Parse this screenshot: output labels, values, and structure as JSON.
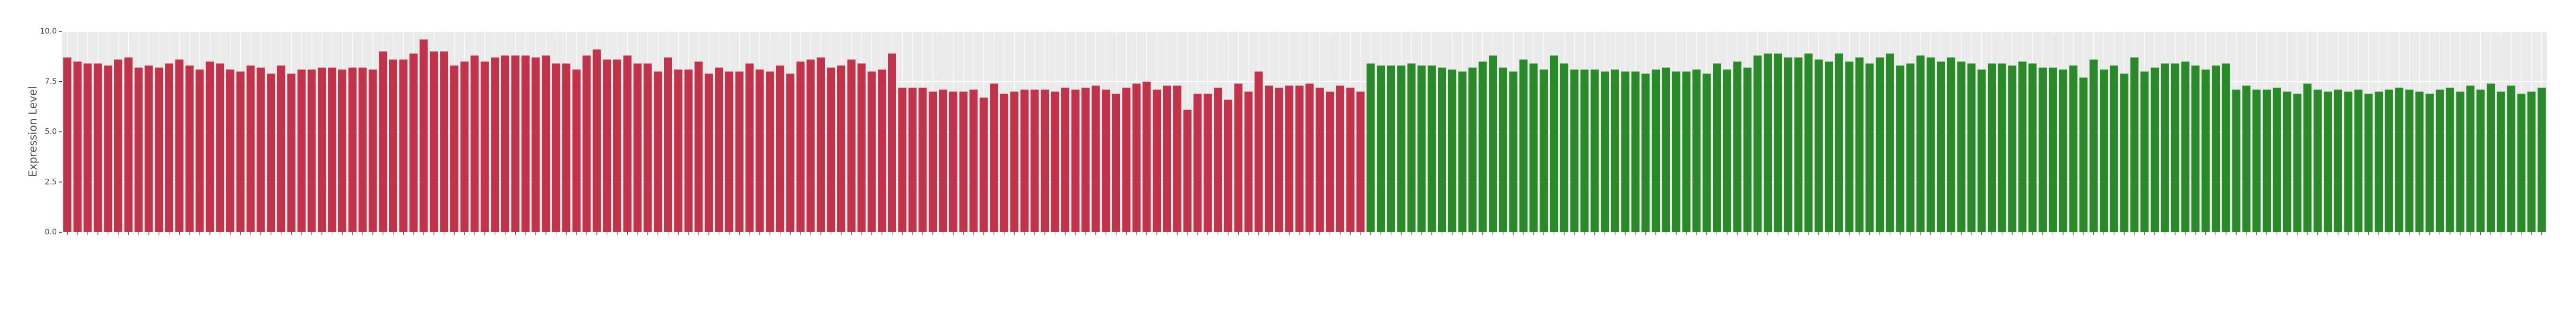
{
  "chart_data": {
    "type": "bar",
    "y_label": "Expression Level",
    "ylim": [
      0,
      10
    ],
    "yticks": [
      {
        "value": 0,
        "label": "0.0"
      },
      {
        "value": 2.5,
        "label": "2.5"
      },
      {
        "value": 5,
        "label": "5.0"
      },
      {
        "value": 7.5,
        "label": "7.5"
      },
      {
        "value": 10,
        "label": "10.0"
      }
    ],
    "grid": true,
    "groups": [
      {
        "color": "#c1334a",
        "values": [
          8.7,
          8.5,
          8.4,
          8.4,
          8.3,
          8.6,
          8.7,
          8.2,
          8.3,
          8.2,
          8.4,
          8.6,
          8.3,
          8.1,
          8.5,
          8.4,
          8.1,
          8.0,
          8.3,
          8.2,
          7.9,
          8.3,
          7.9,
          8.1,
          8.1,
          8.2,
          8.2,
          8.1,
          8.2,
          8.2,
          8.1,
          9.0,
          8.6,
          8.6,
          8.9,
          9.6,
          9.0,
          9.0,
          8.3,
          8.5,
          8.8,
          8.5,
          8.7,
          8.8,
          8.8,
          8.8,
          8.7,
          8.8,
          8.4,
          8.4,
          8.1,
          8.8,
          9.1,
          8.6,
          8.6,
          8.8,
          8.4,
          8.4,
          8.0,
          8.7,
          8.1,
          8.1,
          8.5,
          7.9,
          8.2,
          8.0,
          8.0,
          8.4,
          8.1,
          8.0,
          8.3,
          7.9,
          8.5,
          8.6,
          8.7,
          8.2,
          8.3,
          8.6,
          8.4,
          8.0,
          8.1,
          8.9,
          7.2,
          7.2,
          7.2,
          7.0,
          7.1,
          7.0,
          7.0,
          7.1,
          6.7,
          7.4,
          6.9,
          7.0,
          7.1,
          7.1,
          7.1,
          7.0,
          7.2,
          7.1,
          7.2,
          7.3,
          7.1,
          6.9,
          7.2,
          7.4,
          7.5,
          7.1,
          7.3,
          7.3,
          6.1,
          6.9,
          6.9,
          7.2,
          6.6,
          7.4,
          7.0,
          8.0,
          7.3,
          7.2,
          7.3,
          7.3,
          7.4,
          7.2,
          7.0,
          7.3,
          7.2,
          7.0
        ]
      },
      {
        "color": "#2a8a2a",
        "values": [
          8.4,
          8.3,
          8.3,
          8.3,
          8.4,
          8.3,
          8.3,
          8.2,
          8.1,
          8.0,
          8.2,
          8.5,
          8.8,
          8.2,
          8.0,
          8.6,
          8.4,
          8.1,
          8.8,
          8.4,
          8.1,
          8.1,
          8.1,
          8.0,
          8.1,
          8.0,
          8.0,
          7.9,
          8.1,
          8.2,
          8.0,
          8.0,
          8.1,
          7.9,
          8.4,
          8.1,
          8.5,
          8.2,
          8.8,
          8.9,
          8.9,
          8.7,
          8.7,
          8.9,
          8.6,
          8.5,
          8.9,
          8.5,
          8.7,
          8.4,
          8.7,
          8.9,
          8.3,
          8.4,
          8.8,
          8.7,
          8.5,
          8.7,
          8.5,
          8.4,
          8.1,
          8.4,
          8.4,
          8.3,
          8.5,
          8.4,
          8.2,
          8.2,
          8.1,
          8.3,
          7.7,
          8.6,
          8.1,
          8.3,
          7.9,
          8.7,
          8.0,
          8.2,
          8.4,
          8.4,
          8.5,
          8.3,
          8.1,
          8.3,
          8.4,
          7.1,
          7.3,
          7.1,
          7.1,
          7.2,
          7.0,
          6.9,
          7.4,
          7.1,
          7.0,
          7.1,
          7.0,
          7.1,
          6.9,
          7.0,
          7.1,
          7.2,
          7.1,
          7.0,
          6.9,
          7.1,
          7.2,
          7.0,
          7.3,
          7.1,
          7.4,
          7.0,
          7.3,
          6.9,
          7.0,
          7.2
        ]
      }
    ]
  }
}
